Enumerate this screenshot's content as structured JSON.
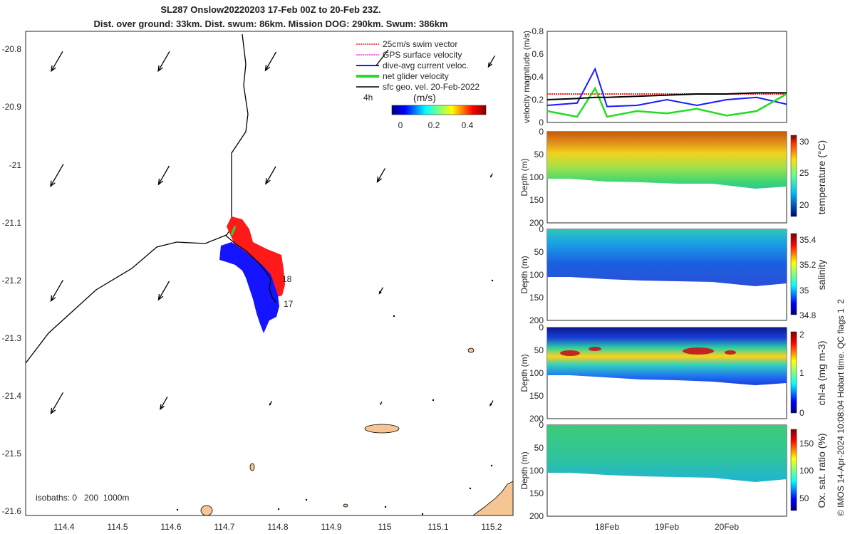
{
  "titles": {
    "line1": "SL287 Onslow20220203 17-Feb 00Z to 20-Feb 23Z.",
    "line2": "Dist. over ground: 33km. Dist. swum: 86km. Mission DOG: 290km. Swum: 386km"
  },
  "map": {
    "lat_ticks": [
      "-20.8",
      "-20.9",
      "-21",
      "-21.1",
      "-21.2",
      "-21.3",
      "-21.4",
      "-21.5",
      "-21.6"
    ],
    "lon_ticks": [
      "114.4",
      "114.5",
      "114.6",
      "114.7",
      "114.8",
      "114.9",
      "115",
      "115.1",
      "115.2"
    ],
    "legend": [
      {
        "label": "25cm/s swim vector",
        "color": "#ff2020"
      },
      {
        "label": "GPS surface velocity",
        "color": "#ff30ff"
      },
      {
        "label": "dive-avg current veloc.",
        "color": "#1a1aff"
      },
      {
        "label": "net glider velocity",
        "color": "#22dd22"
      },
      {
        "label": "sfc geo. vel. 20-Feb-2022",
        "color": "#000000"
      }
    ],
    "colorbar_label": "(m/s)",
    "colorbar_ticks": [
      "0",
      "0.2",
      "0.4"
    ],
    "time_scale": "4h",
    "day_labels": [
      "18",
      "17"
    ],
    "isobaths": "isobaths: 0   200  1000m"
  },
  "velocity_panel": {
    "ylabel": "velocity magnitude (m/s)",
    "y_ticks": [
      "0",
      "0.2",
      "0.4",
      "0.6",
      "0.8"
    ]
  },
  "sections": [
    {
      "var": "temperature (°C)",
      "ylabel": "Depth (m)",
      "y_ticks": [
        "0",
        "50",
        "100",
        "150",
        "200"
      ],
      "cbar_ticks": [
        "30",
        "25",
        "20"
      ]
    },
    {
      "var": "salinity",
      "ylabel": "Depth (m)",
      "y_ticks": [
        "0",
        "50",
        "100",
        "150",
        "200"
      ],
      "cbar_ticks": [
        "35.4",
        "35.2",
        "35",
        "34.8"
      ]
    },
    {
      "var": "chl-a (mg m-3)",
      "ylabel": "Depth (m)",
      "y_ticks": [
        "0",
        "50",
        "100",
        "150",
        "200"
      ],
      "cbar_ticks": [
        "2",
        "1",
        "0"
      ]
    },
    {
      "var": "Ox. sat. ratio (%)",
      "ylabel": "Depth (m)",
      "y_ticks": [
        "0",
        "50",
        "100",
        "150",
        "200"
      ],
      "cbar_ticks": [
        "150",
        "100",
        "50"
      ]
    }
  ],
  "x_date_ticks": [
    "18Feb",
    "19Feb",
    "20Feb"
  ],
  "side_note": "© IMOS 14-Apr-2024 10:08:04 Hobart time. QC flags 1  2",
  "chart_data": {
    "type": "line",
    "title": "SL287 Onslow20220203 17-Feb 00Z to 20-Feb 23Z.",
    "xlabel": "",
    "ylabel": "velocity magnitude (m/s)",
    "ylim": [
      0,
      0.8
    ],
    "x_days": [
      17.0,
      17.5,
      17.8,
      18.0,
      18.5,
      19.0,
      19.5,
      20.0,
      20.5,
      21.0
    ],
    "series": [
      {
        "name": "25cm/s swim vector",
        "color": "#ff2020",
        "values": [
          0.25,
          0.25,
          0.25,
          0.25,
          0.25,
          0.25,
          0.25,
          0.25,
          0.25,
          0.25
        ]
      },
      {
        "name": "dive-avg current veloc.",
        "color": "#1a1aff",
        "values": [
          0.15,
          0.17,
          0.47,
          0.14,
          0.15,
          0.2,
          0.15,
          0.2,
          0.22,
          0.16
        ]
      },
      {
        "name": "net glider velocity",
        "color": "#22dd22",
        "values": [
          0.1,
          0.05,
          0.3,
          0.05,
          0.1,
          0.08,
          0.12,
          0.06,
          0.1,
          0.25
        ]
      },
      {
        "name": "sfc geo. vel.",
        "color": "#000000",
        "values": [
          0.2,
          0.21,
          0.22,
          0.22,
          0.23,
          0.24,
          0.25,
          0.25,
          0.26,
          0.26
        ]
      }
    ]
  }
}
